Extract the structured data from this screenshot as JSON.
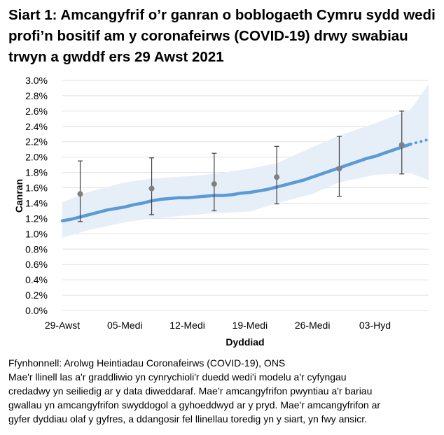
{
  "title": "Siart 1: Amcangyfrif o’r ganran o boblogaeth Cymru sydd wedi profi’n bositif am y coronafeirws (COVID-19) drwy swabiau trwyn a gwddf ers 29 Awst 2021",
  "chart_data": {
    "type": "line",
    "title": "Siart 1: Amcangyfrif o’r ganran o boblogaeth Cymru sydd wedi profi’n bositif am y coronafeirws (COVID-19) drwy swabiau trwyn a gwddf ers 29 Awst 2021",
    "xlabel": "Dyddiad",
    "ylabel": "Canran",
    "xlim": [
      "2021-08-29",
      "2021-10-09"
    ],
    "ylim": [
      0,
      3.0
    ],
    "grid": "horizontal",
    "x_ticks": [
      {
        "date": "2021-08-29",
        "label": "29-Awst"
      },
      {
        "date": "2021-09-05",
        "label": "05-Medi"
      },
      {
        "date": "2021-09-12",
        "label": "12-Medi"
      },
      {
        "date": "2021-09-19",
        "label": "19-Medi"
      },
      {
        "date": "2021-09-26",
        "label": "26-Medi"
      },
      {
        "date": "2021-10-03",
        "label": "03-Hyd"
      }
    ],
    "y_ticks": [
      "0.0%",
      "0.2%",
      "0.4%",
      "0.6%",
      "0.8%",
      "1.0%",
      "1.2%",
      "1.4%",
      "1.6%",
      "1.8%",
      "2.0%",
      "2.2%",
      "2.4%",
      "2.6%",
      "2.8%",
      "3.0%"
    ],
    "y_tick_values": [
      0,
      0.2,
      0.4,
      0.6,
      0.8,
      1.0,
      1.2,
      1.4,
      1.6,
      1.8,
      2.0,
      2.2,
      2.4,
      2.6,
      2.8,
      3.0
    ],
    "colors": {
      "line": "#5b9bd5",
      "band": "#e6eef8",
      "point": "#808080",
      "error_bar": "#404040",
      "grid": "#e0e0e0"
    },
    "modelled_line": [
      [
        "2021-08-29",
        1.17
      ],
      [
        "2021-08-30",
        1.19
      ],
      [
        "2021-08-31",
        1.22
      ],
      [
        "2021-09-01",
        1.25
      ],
      [
        "2021-09-02",
        1.28
      ],
      [
        "2021-09-03",
        1.31
      ],
      [
        "2021-09-04",
        1.33
      ],
      [
        "2021-09-05",
        1.35
      ],
      [
        "2021-09-06",
        1.38
      ],
      [
        "2021-09-07",
        1.4
      ],
      [
        "2021-09-08",
        1.43
      ],
      [
        "2021-09-09",
        1.45
      ],
      [
        "2021-09-10",
        1.46
      ],
      [
        "2021-09-11",
        1.47
      ],
      [
        "2021-09-12",
        1.47
      ],
      [
        "2021-09-13",
        1.48
      ],
      [
        "2021-09-14",
        1.49
      ],
      [
        "2021-09-15",
        1.5
      ],
      [
        "2021-09-16",
        1.5
      ],
      [
        "2021-09-17",
        1.51
      ],
      [
        "2021-09-18",
        1.53
      ],
      [
        "2021-09-19",
        1.54
      ],
      [
        "2021-09-20",
        1.56
      ],
      [
        "2021-09-21",
        1.58
      ],
      [
        "2021-09-22",
        1.61
      ],
      [
        "2021-09-23",
        1.64
      ],
      [
        "2021-09-24",
        1.67
      ],
      [
        "2021-09-25",
        1.7
      ],
      [
        "2021-09-26",
        1.74
      ],
      [
        "2021-09-27",
        1.78
      ],
      [
        "2021-09-28",
        1.82
      ],
      [
        "2021-09-29",
        1.86
      ],
      [
        "2021-09-30",
        1.9
      ],
      [
        "2021-10-01",
        1.94
      ],
      [
        "2021-10-02",
        1.98
      ],
      [
        "2021-10-03",
        2.01
      ],
      [
        "2021-10-04",
        2.05
      ],
      [
        "2021-10-05",
        2.09
      ],
      [
        "2021-10-06",
        2.13
      ],
      [
        "2021-10-07",
        2.17
      ]
    ],
    "modelled_line_provisional": [
      [
        "2021-10-07",
        2.17
      ],
      [
        "2021-10-08",
        2.2
      ],
      [
        "2021-10-09",
        2.23
      ],
      [
        "2021-10-10",
        2.26
      ]
    ],
    "credible_interval": [
      {
        "date": "2021-08-29",
        "lower": 0.95,
        "upper": 1.41
      },
      {
        "date": "2021-09-01",
        "lower": 1.05,
        "upper": 1.55
      },
      {
        "date": "2021-09-05",
        "lower": 1.15,
        "upper": 1.67
      },
      {
        "date": "2021-09-08",
        "lower": 1.2,
        "upper": 1.72
      },
      {
        "date": "2021-09-12",
        "lower": 1.24,
        "upper": 1.75
      },
      {
        "date": "2021-09-15",
        "lower": 1.27,
        "upper": 1.78
      },
      {
        "date": "2021-09-19",
        "lower": 1.29,
        "upper": 1.85
      },
      {
        "date": "2021-09-22",
        "lower": 1.4,
        "upper": 1.92
      },
      {
        "date": "2021-09-26",
        "lower": 1.52,
        "upper": 2.13
      },
      {
        "date": "2021-09-29",
        "lower": 1.67,
        "upper": 2.28
      },
      {
        "date": "2021-10-03",
        "lower": 1.77,
        "upper": 2.44
      },
      {
        "date": "2021-10-07",
        "lower": 1.79,
        "upper": 2.62
      },
      {
        "date": "2021-10-10",
        "lower": 1.7,
        "upper": 2.95
      }
    ],
    "official_estimates": [
      {
        "date": "2021-08-31",
        "value": 1.52,
        "lower": 1.16,
        "upper": 1.95
      },
      {
        "date": "2021-09-08",
        "value": 1.59,
        "lower": 1.25,
        "upper": 1.99
      },
      {
        "date": "2021-09-15",
        "value": 1.65,
        "lower": 1.3,
        "upper": 2.05
      },
      {
        "date": "2021-09-22",
        "value": 1.74,
        "lower": 1.39,
        "upper": 2.14
      },
      {
        "date": "2021-09-29",
        "value": 1.85,
        "lower": 1.49,
        "upper": 2.27
      },
      {
        "date": "2021-10-06",
        "value": 2.16,
        "lower": 1.78,
        "upper": 2.6
      }
    ]
  },
  "footer": {
    "source": "Ffynhonnell: Arolwg Heintiadau Coronafeirws (COVID-19), ONS",
    "note_lines": [
      "Mae'r llinell las a'r graddliwio yn cynrychioli'r duedd wedi'i modelu a'r cyfyngau",
      "credadwy yn seiliedig ar y data diweddaraf. Mae’r amcangyfrifon pwyntiau a'r bariau",
      "gwallau yn amcangyfrifon swyddogol a gyhoeddwyd ar y pryd. Mae'r amcangyfrifon ar",
      "gyfer dyddiau olaf y gyfres, a ddangosir fel llinellau toredig yn y siart, yn fwy ansicr."
    ]
  }
}
